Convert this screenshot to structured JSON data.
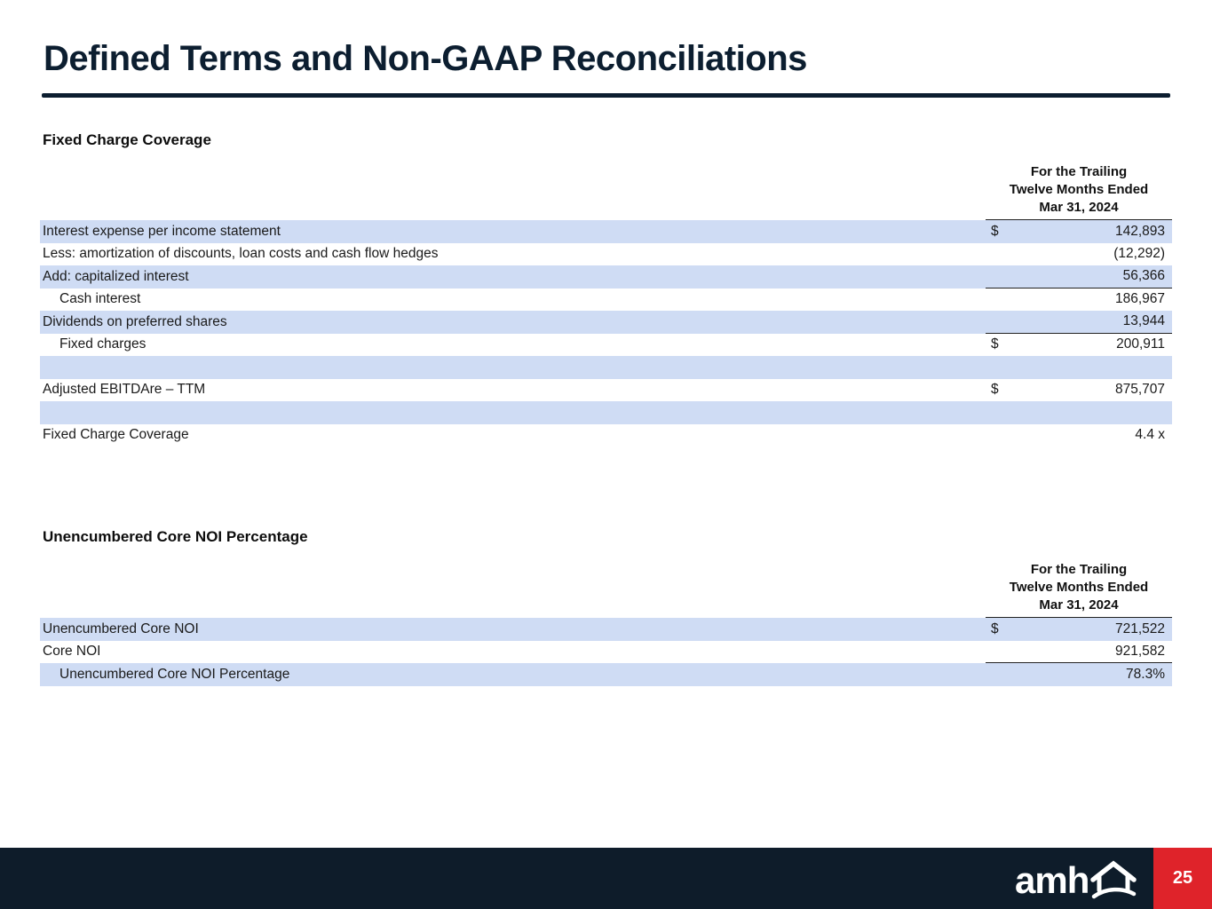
{
  "slide": {
    "title": "Defined Terms and Non-GAAP Reconciliations",
    "page_number": "25",
    "logo_text": "amh"
  },
  "colors": {
    "navy": "#0c1e30",
    "row_blue": "#cfdcf4",
    "red": "#df232a"
  },
  "tables": [
    {
      "section_title": "Fixed Charge Coverage",
      "header_lines": [
        "For the Trailing",
        "Twelve Months Ended",
        "Mar 31, 2024"
      ],
      "rows": [
        {
          "label": "Interest expense per income statement",
          "dollar": "$",
          "value": "142,893",
          "shaded": true
        },
        {
          "label": "Less: amortization of discounts, loan costs and cash flow hedges",
          "dollar": "",
          "value": "(12,292)",
          "shaded": false
        },
        {
          "label": "Add: capitalized interest",
          "dollar": "",
          "value": "56,366",
          "shaded": true,
          "border": true
        },
        {
          "label": "Cash interest",
          "indent": true,
          "dollar": "",
          "value": "186,967",
          "shaded": false
        },
        {
          "label": "Dividends on preferred shares",
          "dollar": "",
          "value": "13,944",
          "shaded": true,
          "border": true
        },
        {
          "label": "Fixed charges",
          "indent": true,
          "dollar": "$",
          "value": "200,911",
          "shaded": false
        },
        {
          "label": "",
          "dollar": "",
          "value": "",
          "shaded": true
        },
        {
          "label": "Adjusted EBITDAre – TTM",
          "dollar": "$",
          "value": "875,707",
          "shaded": false
        },
        {
          "label": "",
          "dollar": "",
          "value": "",
          "shaded": true
        },
        {
          "label": "Fixed Charge Coverage",
          "dollar": "",
          "value": "4.4 x",
          "shaded": false
        }
      ]
    },
    {
      "section_title": "Unencumbered Core NOI Percentage",
      "header_lines": [
        "For the Trailing",
        "Twelve Months Ended",
        "Mar 31, 2024"
      ],
      "rows": [
        {
          "label": "Unencumbered Core NOI",
          "dollar": "$",
          "value": "721,522",
          "shaded": true
        },
        {
          "label": "Core NOI",
          "dollar": "",
          "value": "921,582",
          "shaded": false,
          "border": true
        },
        {
          "label": "Unencumbered Core NOI Percentage",
          "indent": true,
          "dollar": "",
          "value": "78.3%",
          "shaded": true
        }
      ]
    }
  ]
}
